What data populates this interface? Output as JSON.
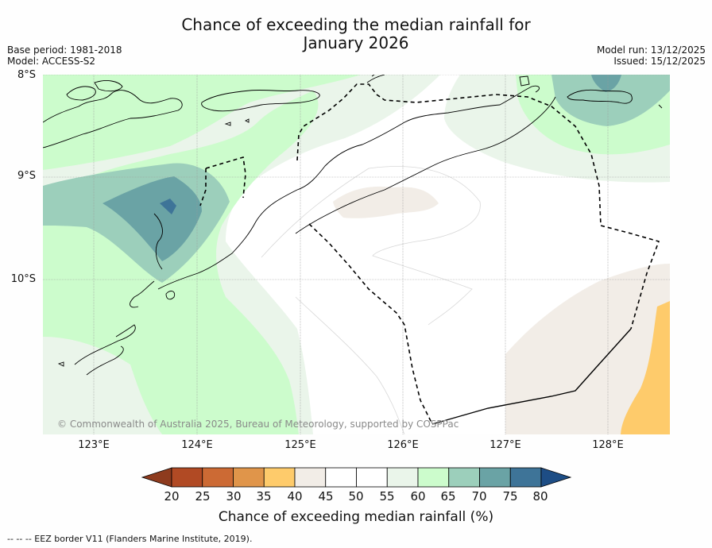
{
  "title_line1": "Chance of exceeding the median rainfall for",
  "title_line2": "January 2026",
  "base_period": "Base period: 1981-2018",
  "model": "Model: ACCESS-S2",
  "model_run": "Model run: 13/12/2025",
  "issued": "Issued: 15/12/2025",
  "lat_labels": [
    "8°S",
    "9°S",
    "10°S"
  ],
  "lon_labels": [
    "123°E",
    "124°E",
    "125°E",
    "126°E",
    "127°E",
    "128°E"
  ],
  "copyright": "© Commonwealth of Australia 2025, Bureau of Meteorology, supported by COSPPac",
  "colorbar": {
    "ticks": [
      "20",
      "25",
      "30",
      "35",
      "40",
      "45",
      "50",
      "55",
      "60",
      "65",
      "70",
      "75",
      "80"
    ],
    "colors": [
      "#8e3b1e",
      "#b14a24",
      "#cc6a34",
      "#e0954a",
      "#fecb6b",
      "#f2ede7",
      "#ffffff",
      "#ffffff",
      "#eaf5ea",
      "#ccfccc",
      "#9ccfbb",
      "#6aa3a5",
      "#3e7498",
      "#1d4d85"
    ],
    "label": "Chance of exceeding median rainfall (%)"
  },
  "footer": "--  --  -- EEZ border V11 (Flanders Marine Institute, 2019)."
}
